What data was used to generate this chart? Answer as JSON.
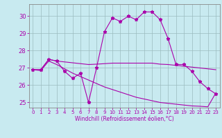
{
  "xlabel": "Windchill (Refroidissement éolien,°C)",
  "xlim": [
    -0.5,
    23.5
  ],
  "ylim": [
    24.7,
    30.7
  ],
  "yticks": [
    25,
    26,
    27,
    28,
    29,
    30
  ],
  "xticks": [
    0,
    1,
    2,
    3,
    4,
    5,
    6,
    7,
    8,
    9,
    10,
    11,
    12,
    13,
    14,
    15,
    16,
    17,
    18,
    19,
    20,
    21,
    22,
    23
  ],
  "bg_color": "#c8eaf0",
  "line_color": "#aa00aa",
  "grid_color": "#9bbcbe",
  "line1_x": [
    0,
    1,
    2,
    3,
    4,
    5,
    6,
    7,
    8,
    9,
    10,
    11,
    12,
    13,
    14,
    15,
    16,
    17,
    18,
    19,
    20,
    21,
    22,
    23
  ],
  "line1_y": [
    26.9,
    26.9,
    27.5,
    27.4,
    26.8,
    26.4,
    26.7,
    25.0,
    27.0,
    29.1,
    29.9,
    29.7,
    30.0,
    29.8,
    30.25,
    30.25,
    29.8,
    28.7,
    27.2,
    27.2,
    26.8,
    26.2,
    25.8,
    25.5
  ],
  "line2_x": [
    0,
    1,
    2,
    3,
    4,
    5,
    6,
    7,
    8,
    9,
    10,
    11,
    12,
    13,
    14,
    15,
    16,
    17,
    18,
    19,
    20,
    21,
    22,
    23
  ],
  "line2_y": [
    26.9,
    26.9,
    27.5,
    27.4,
    27.35,
    27.3,
    27.25,
    27.2,
    27.22,
    27.25,
    27.28,
    27.28,
    27.28,
    27.28,
    27.28,
    27.28,
    27.22,
    27.2,
    27.15,
    27.1,
    27.05,
    27.0,
    26.95,
    26.9
  ],
  "line3_x": [
    0,
    1,
    2,
    3,
    4,
    5,
    6,
    7,
    8,
    9,
    10,
    11,
    12,
    13,
    14,
    15,
    16,
    17,
    18,
    19,
    20,
    21,
    22,
    23
  ],
  "line3_y": [
    26.9,
    26.85,
    27.4,
    27.2,
    26.95,
    26.7,
    26.5,
    26.3,
    26.1,
    25.9,
    25.75,
    25.6,
    25.45,
    25.3,
    25.2,
    25.1,
    25.0,
    24.95,
    24.9,
    24.85,
    24.8,
    24.78,
    24.75,
    25.55
  ]
}
